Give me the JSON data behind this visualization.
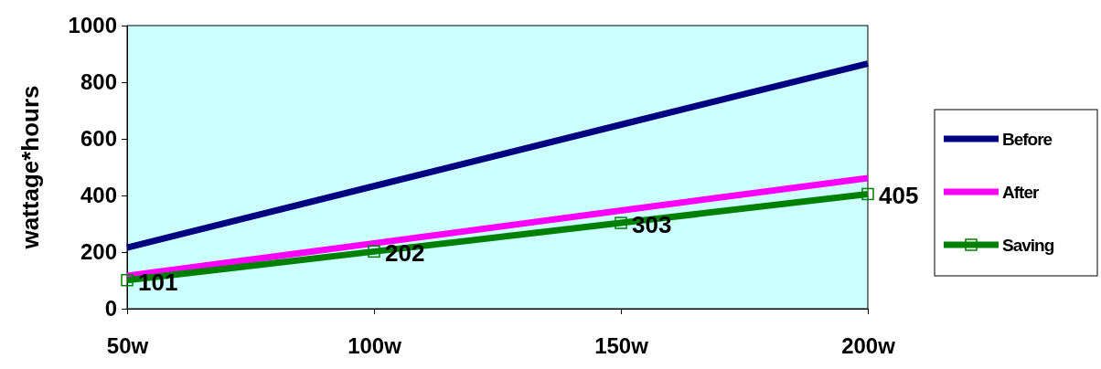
{
  "chart_data": {
    "type": "line",
    "ylabel": "wattage*hours",
    "categories": [
      "50w",
      "100w",
      "150w",
      "200w"
    ],
    "series": [
      {
        "name": "Before",
        "color": "#000080",
        "values": [
          216,
          433,
          650,
          866
        ],
        "marker": "none"
      },
      {
        "name": "After",
        "color": "#ff00ff",
        "values": [
          116,
          231,
          347,
          461
        ],
        "marker": "none"
      },
      {
        "name": "Saving",
        "color": "#008000",
        "values": [
          101,
          202,
          303,
          405
        ],
        "marker": "square",
        "value_labels": [
          "101",
          "202",
          "303",
          "405"
        ]
      }
    ],
    "ylim": [
      0,
      1000
    ],
    "yticks": [
      0,
      200,
      400,
      600,
      800,
      1000
    ],
    "grid": false,
    "legend": "right",
    "line_style": "solid"
  }
}
